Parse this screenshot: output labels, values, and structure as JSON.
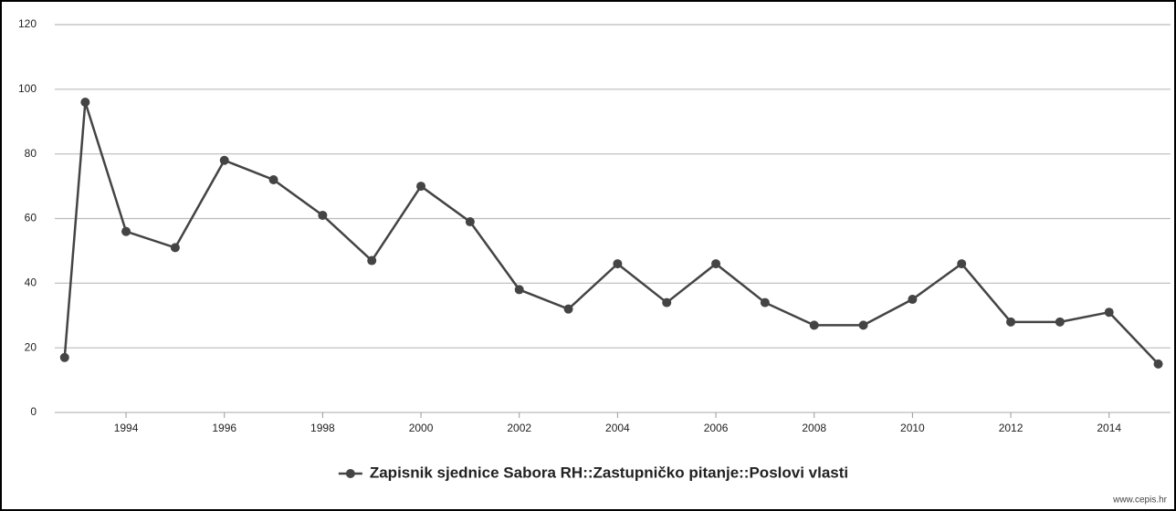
{
  "chart_data": {
    "type": "line",
    "x": [
      1992.75,
      1993.17,
      1994,
      1995,
      1996,
      1997,
      1998,
      1999,
      2000,
      2001,
      2002,
      2003,
      2004,
      2005,
      2006,
      2007,
      2008,
      2009,
      2010,
      2011,
      2012,
      2013,
      2014,
      2015
    ],
    "series": [
      {
        "name": "Zapisnik sjednice Sabora RH::Zastupničko pitanje::Poslovi vlasti",
        "color": "#444444",
        "values": [
          17,
          96,
          56,
          51,
          78,
          72,
          61,
          47,
          70,
          59,
          38,
          32,
          46,
          34,
          46,
          34,
          27,
          27,
          35,
          46,
          28,
          28,
          31,
          15
        ]
      }
    ],
    "xlim": [
      1992.55,
      2015.25
    ],
    "xticks": [
      1994,
      1996,
      1998,
      2000,
      2002,
      2004,
      2006,
      2008,
      2010,
      2012,
      2014
    ],
    "ylim": [
      0,
      120
    ],
    "yticks": [
      0,
      20,
      40,
      60,
      80,
      100,
      120
    ],
    "grid": true,
    "legend": "bottom",
    "source": "www.cepis.hr"
  }
}
